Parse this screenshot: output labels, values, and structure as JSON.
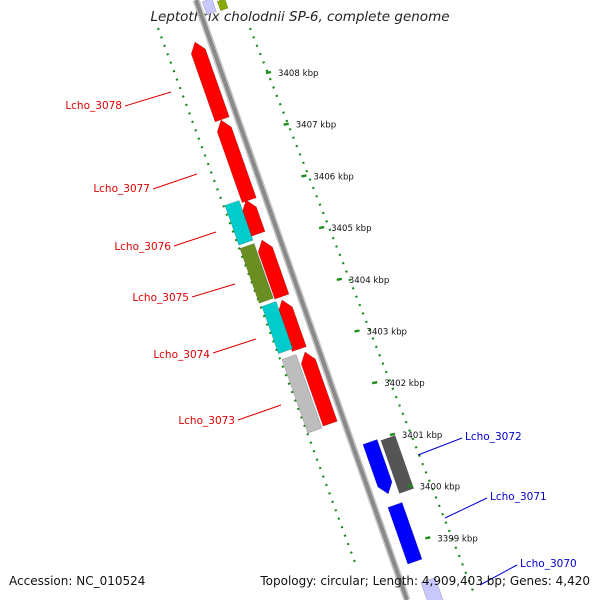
{
  "title": "Leptothrix cholodnii SP-6, complete genome",
  "footer": {
    "accession": "Accession: NC_010524",
    "summary": "Topology: circular; Length: 4,909,403 bp; Genes: 4,420"
  },
  "scale": {
    "ticks": [
      "3408 kbp",
      "3407 kbp",
      "3406 kbp",
      "3405 kbp",
      "3404 kbp",
      "3403 kbp",
      "3402 kbp",
      "3401 kbp",
      "3400 kbp",
      "3399 kbp"
    ]
  },
  "colors": {
    "reverse_cds": "#ff0000",
    "forward_cds": "#0000ff",
    "cyan_feature": "#00cccc",
    "olive_feature": "#6b8e23",
    "light_gray_feature": "#bdbdbd",
    "dark_gray_feature": "#555555",
    "backbone": "#8a8a8a",
    "dotted_track": "#1a8c1a",
    "label_reverse": "#dd0000",
    "label_forward": "#0000cc"
  },
  "genes_reverse_strand": [
    {
      "label": "Lcho_3078"
    },
    {
      "label": "Lcho_3077"
    },
    {
      "label": "Lcho_3076"
    },
    {
      "label": "Lcho_3075"
    },
    {
      "label": "Lcho_3074"
    },
    {
      "label": "Lcho_3073"
    }
  ],
  "genes_forward_strand": [
    {
      "label": "Lcho_3072"
    },
    {
      "label": "Lcho_3071"
    },
    {
      "label": "Lcho_3070"
    }
  ]
}
